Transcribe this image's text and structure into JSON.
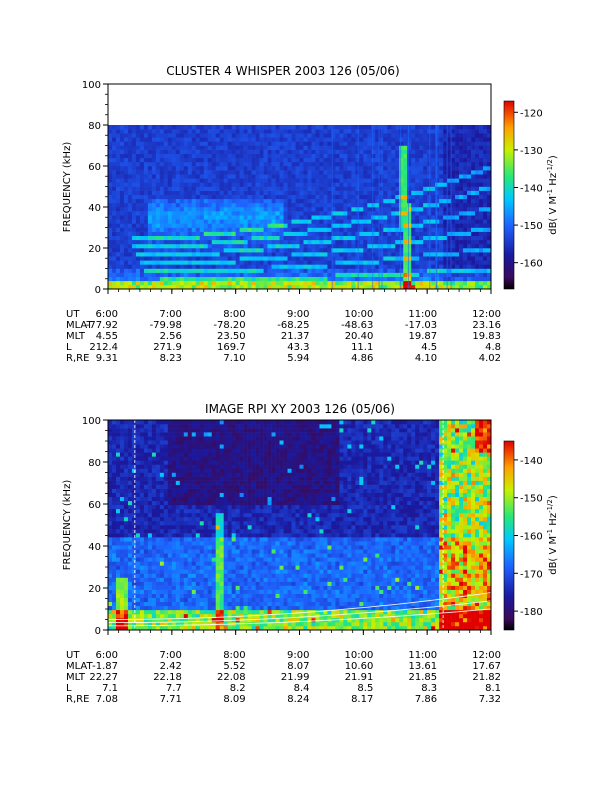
{
  "chart_data": [
    {
      "type": "heatmap",
      "title": "CLUSTER 4 WHISPER 2003 126 (05/06)",
      "ylabel": "FREQUENCY (kHz)",
      "ylim": [
        0,
        100
      ],
      "yticks": [
        "0",
        "20",
        "40",
        "60",
        "80",
        "100"
      ],
      "data_ylim": [
        0,
        80
      ],
      "xlim_hours": [
        6,
        12
      ],
      "xticks": [
        "6:00",
        "7:00",
        "8:00",
        "9:00",
        "10:00",
        "11:00",
        "12:00"
      ],
      "colorbar": {
        "label": "dB( V M⁻¹ Hz⁻¹ᐟ²)",
        "label_parts": [
          "dB( V M",
          "-1",
          " Hz",
          "-1/2",
          ")"
        ],
        "range": [
          -167,
          -117
        ],
        "ticks": [
          "-120",
          "-130",
          "-140",
          "-150",
          "-160"
        ],
        "tick_values": [
          -120,
          -130,
          -140,
          -150,
          -160
        ]
      },
      "ephemeris": {
        "rows": [
          {
            "name": "UT",
            "values": [
              "6:00",
              "7:00",
              "8:00",
              "9:00",
              "10:00",
              "11:00",
              "12:00"
            ]
          },
          {
            "name": "MLAT",
            "values": [
              "-77.92",
              "-79.98",
              "-78.20",
              "-68.25",
              "-48.63",
              "-17.03",
              "23.16"
            ]
          },
          {
            "name": "MLT",
            "values": [
              "4.55",
              "2.56",
              "23.50",
              "21.37",
              "20.40",
              "19.87",
              "19.83"
            ]
          },
          {
            "name": "L",
            "values": [
              "212.4",
              "271.9",
              "169.7",
              "43.3",
              "11.1",
              "4.5",
              "4.8"
            ]
          },
          {
            "name": "R,RE",
            "values": [
              "9.31",
              "8.23",
              "7.10",
              "5.94",
              "4.86",
              "4.10",
              "4.02"
            ]
          }
        ]
      }
    },
    {
      "type": "heatmap",
      "title": "IMAGE RPI XY 2003 126 (05/06)",
      "ylabel": "FREQUENCY (kHz)",
      "ylim": [
        0,
        100
      ],
      "yticks": [
        "0",
        "20",
        "40",
        "60",
        "80",
        "100"
      ],
      "xlim_hours": [
        6,
        12
      ],
      "xticks": [
        "6:00",
        "7:00",
        "8:00",
        "9:00",
        "10:00",
        "11:00",
        "12:00"
      ],
      "colorbar": {
        "label_parts": [
          "dB( V M",
          "-1",
          " Hz",
          "-1/2",
          ")"
        ],
        "range": [
          -185,
          -135
        ],
        "ticks": [
          "-140",
          "-150",
          "-160",
          "-170",
          "-180"
        ],
        "tick_values": [
          -140,
          -150,
          -160,
          -170,
          -180
        ]
      },
      "ephemeris": {
        "rows": [
          {
            "name": "UT",
            "values": [
              "6:00",
              "7:00",
              "8:00",
              "9:00",
              "10:00",
              "11:00",
              "12:00"
            ]
          },
          {
            "name": "MLAT",
            "values": [
              "-1.87",
              "2.42",
              "5.52",
              "8.07",
              "10.60",
              "13.61",
              "17.67"
            ]
          },
          {
            "name": "MLT",
            "values": [
              "22.27",
              "22.18",
              "22.08",
              "21.99",
              "21.91",
              "21.85",
              "21.82"
            ]
          },
          {
            "name": "L",
            "values": [
              "7.1",
              "7.7",
              "8.2",
              "8.4",
              "8.5",
              "8.3",
              "8.1"
            ]
          },
          {
            "name": "R,RE",
            "values": [
              "7.08",
              "7.71",
              "8.09",
              "8.24",
              "8.17",
              "7.86",
              "7.32"
            ]
          }
        ]
      }
    }
  ]
}
